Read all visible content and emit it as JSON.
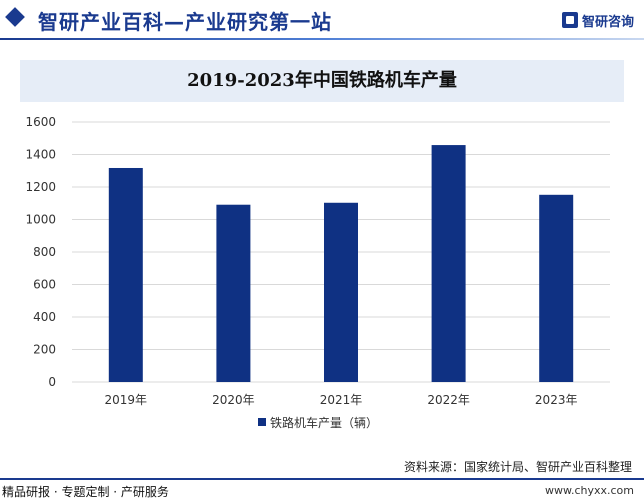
{
  "header": {
    "site_title": "智研产业百科—产业研究第一站",
    "brand_name": "智研咨询"
  },
  "colors": {
    "bar": "#0f3183",
    "grid": "#d9d9d9",
    "accent": "#1a3a8f",
    "title_band": "#e6edf7"
  },
  "chart_data": {
    "type": "bar",
    "title": "2019-2023年中国铁路机车产量",
    "categories": [
      "2019年",
      "2020年",
      "2021年",
      "2022年",
      "2023年"
    ],
    "series": [
      {
        "name": "铁路机车产量（辆）",
        "values": [
          1317,
          1091,
          1103,
          1458,
          1152
        ]
      }
    ],
    "ylim": [
      0,
      1600
    ],
    "yticks": [
      0,
      200,
      400,
      600,
      800,
      1000,
      1200,
      1400,
      1600
    ],
    "grid": true,
    "legend_position": "bottom-center"
  },
  "footer": {
    "source": "资料来源：国家统计局、智研产业百科整理",
    "left_text": "精品研报 · 专题定制 · 产研服务",
    "url": "www.chyxx.com"
  }
}
